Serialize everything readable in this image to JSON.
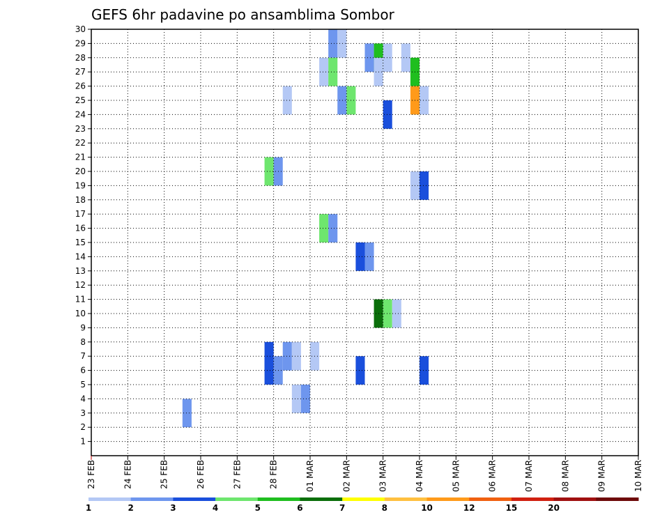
{
  "chart_data": {
    "type": "heatmap",
    "title": "GEFS 6hr padavine po ansamblima Sombor",
    "x_tick_labels": [
      "23 FEB",
      "24 FEB",
      "25 FEB",
      "26 FEB",
      "27 FEB",
      "28 FEB",
      "01 MAR",
      "02 MAR",
      "03 MAR",
      "04 MAR",
      "05 MAR",
      "06 MAR",
      "07 MAR",
      "08 MAR",
      "09 MAR",
      "10 MAR"
    ],
    "y_tick_labels": [
      "1",
      "2",
      "3",
      "4",
      "5",
      "6",
      "7",
      "8",
      "9",
      "10",
      "11",
      "12",
      "13",
      "14",
      "15",
      "16",
      "17",
      "18",
      "19",
      "20",
      "21",
      "22",
      "23",
      "24",
      "25",
      "26",
      "27",
      "28",
      "29",
      "30"
    ],
    "x_range_days": [
      0,
      15
    ],
    "y_range": [
      0,
      30
    ],
    "grid": true,
    "bins": [
      {
        "label": "1",
        "color": "#b4c8f5"
      },
      {
        "label": "2",
        "color": "#6e96ee"
      },
      {
        "label": "3",
        "color": "#1a4fdc"
      },
      {
        "label": "4",
        "color": "#6ee66e"
      },
      {
        "label": "5",
        "color": "#1fbe1f"
      },
      {
        "label": "6",
        "color": "#0a6e0a"
      },
      {
        "label": "7",
        "color": "#ffff00"
      },
      {
        "label": "8",
        "color": "#ffc040"
      },
      {
        "label": "10",
        "color": "#ff9a1a"
      },
      {
        "label": "12",
        "color": "#f06010"
      },
      {
        "label": "15",
        "color": "#d02010"
      },
      {
        "label": "20",
        "color": "#a01010"
      },
      {
        "label": "",
        "color": "#6e0a0a"
      }
    ],
    "cells": [
      {
        "day": 2,
        "hour": 12,
        "member": 3,
        "bin": 1
      },
      {
        "day": 6,
        "hour": 12,
        "member": 29,
        "bin": 1
      },
      {
        "day": 6,
        "hour": 18,
        "member": 29,
        "bin": 0
      },
      {
        "day": 7,
        "hour": 12,
        "member": 28,
        "bin": 1
      },
      {
        "day": 7,
        "hour": 18,
        "member": 28,
        "bin": 4
      },
      {
        "day": 8,
        "hour": 0,
        "member": 28,
        "bin": 0
      },
      {
        "day": 8,
        "hour": 12,
        "member": 28,
        "bin": 0
      },
      {
        "day": 6,
        "hour": 6,
        "member": 27,
        "bin": 0
      },
      {
        "day": 6,
        "hour": 12,
        "member": 27,
        "bin": 3
      },
      {
        "day": 7,
        "hour": 18,
        "member": 27,
        "bin": 0
      },
      {
        "day": 8,
        "hour": 18,
        "member": 27,
        "bin": 4
      },
      {
        "day": 5,
        "hour": 6,
        "member": 25,
        "bin": 0
      },
      {
        "day": 6,
        "hour": 18,
        "member": 25,
        "bin": 1
      },
      {
        "day": 7,
        "hour": 0,
        "member": 25,
        "bin": 3
      },
      {
        "day": 8,
        "hour": 18,
        "member": 25,
        "bin": 8
      },
      {
        "day": 9,
        "hour": 0,
        "member": 25,
        "bin": 0
      },
      {
        "day": 8,
        "hour": 0,
        "member": 24,
        "bin": 2
      },
      {
        "day": 4,
        "hour": 18,
        "member": 20,
        "bin": 3
      },
      {
        "day": 5,
        "hour": 0,
        "member": 20,
        "bin": 1
      },
      {
        "day": 8,
        "hour": 18,
        "member": 19,
        "bin": 0
      },
      {
        "day": 9,
        "hour": 0,
        "member": 19,
        "bin": 2
      },
      {
        "day": 6,
        "hour": 6,
        "member": 16,
        "bin": 3
      },
      {
        "day": 6,
        "hour": 12,
        "member": 16,
        "bin": 1
      },
      {
        "day": 7,
        "hour": 6,
        "member": 14,
        "bin": 2
      },
      {
        "day": 7,
        "hour": 12,
        "member": 14,
        "bin": 1
      },
      {
        "day": 7,
        "hour": 18,
        "member": 10,
        "bin": 5
      },
      {
        "day": 8,
        "hour": 0,
        "member": 10,
        "bin": 3
      },
      {
        "day": 8,
        "hour": 6,
        "member": 10,
        "bin": 0
      },
      {
        "day": 4,
        "hour": 18,
        "member": 7,
        "bin": 2
      },
      {
        "day": 5,
        "hour": 6,
        "member": 7,
        "bin": 1
      },
      {
        "day": 5,
        "hour": 12,
        "member": 7,
        "bin": 0
      },
      {
        "day": 6,
        "hour": 0,
        "member": 7,
        "bin": 0
      },
      {
        "day": 4,
        "hour": 18,
        "member": 6,
        "bin": 2
      },
      {
        "day": 5,
        "hour": 0,
        "member": 6,
        "bin": 1
      },
      {
        "day": 7,
        "hour": 6,
        "member": 6,
        "bin": 2
      },
      {
        "day": 9,
        "hour": 0,
        "member": 6,
        "bin": 2
      },
      {
        "day": 5,
        "hour": 12,
        "member": 4,
        "bin": 0
      },
      {
        "day": 5,
        "hour": 18,
        "member": 4,
        "bin": 1
      }
    ]
  }
}
